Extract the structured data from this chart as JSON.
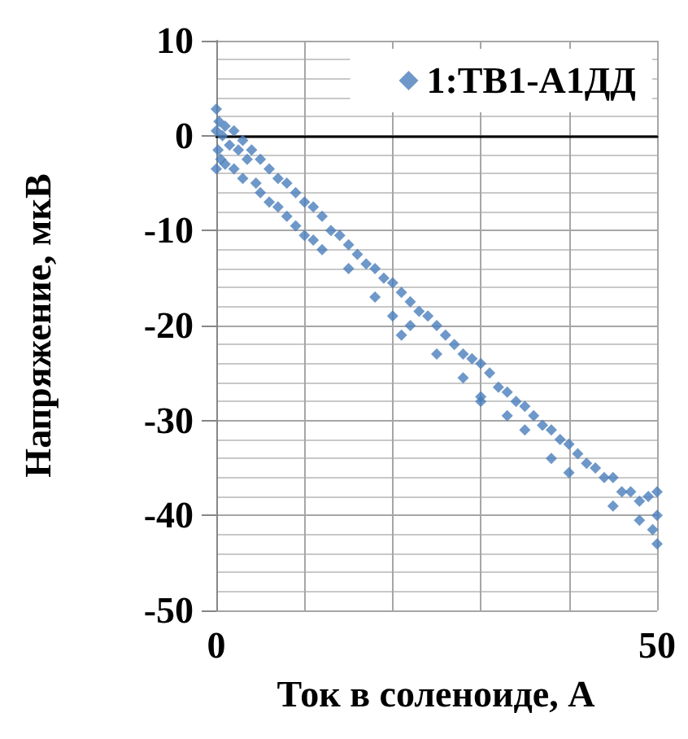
{
  "chart_data": {
    "type": "scatter",
    "xlabel": "Ток в соленоиде, А",
    "ylabel": "Напряжение, мкВ",
    "xlim": [
      0,
      50
    ],
    "xticks": [
      0,
      {
        "value": 10,
        "label": null
      },
      {
        "value": 20,
        "label": null
      },
      {
        "value": 30,
        "label": null
      },
      {
        "value": 40,
        "label": null
      },
      50
    ],
    "ylim": [
      -50,
      10
    ],
    "yticks": [
      -50,
      -40,
      -30,
      -20,
      -10,
      0,
      10
    ],
    "grid": true,
    "legend": "top right",
    "marker": "diamond",
    "series": [
      {
        "name": "1:ТВ1-А1ДД",
        "color": "#4a7ebb",
        "x": [
          0,
          0,
          0,
          0.2,
          0.3,
          0.5,
          0.7,
          1,
          1,
          1.5,
          2,
          2,
          2.5,
          3,
          3,
          3.5,
          4,
          4.5,
          5,
          5,
          6,
          6,
          7,
          7,
          8,
          8,
          9,
          9,
          10,
          10,
          11,
          11,
          12,
          12,
          13,
          14,
          15,
          15,
          16,
          17,
          18,
          18,
          19,
          20,
          20,
          21,
          21,
          22,
          22,
          23,
          24,
          25,
          25,
          26,
          27,
          28,
          28,
          29,
          30,
          30,
          30,
          31,
          32,
          33,
          33,
          34,
          35,
          35,
          36,
          37,
          38,
          38,
          39,
          40,
          40,
          41,
          42,
          43,
          44,
          45,
          45,
          46,
          47,
          48,
          48,
          49,
          49.5,
          50,
          50,
          50
        ],
        "values": [
          2.8,
          -3.5,
          0.5,
          -1.5,
          1.5,
          -2.5,
          0,
          1,
          -3,
          -1,
          0.5,
          -3.5,
          -1.5,
          -0.5,
          -4.5,
          -2.5,
          -1.5,
          -5,
          -2.5,
          -6,
          -3.5,
          -7,
          -4.5,
          -7.5,
          -5,
          -8.5,
          -6,
          -9.5,
          -7,
          -10.5,
          -7.5,
          -11,
          -8.5,
          -12,
          -10,
          -10.5,
          -11.5,
          -14,
          -12.5,
          -13.5,
          -14,
          -17,
          -15,
          -15.5,
          -19,
          -16.5,
          -21,
          -17.5,
          -20,
          -18.5,
          -19,
          -20,
          -23,
          -21,
          -22,
          -23,
          -25.5,
          -23.5,
          -24,
          -27.5,
          -28,
          -25,
          -26.5,
          -27,
          -29.5,
          -28,
          -28.5,
          -31,
          -29.5,
          -30.5,
          -31,
          -34,
          -32,
          -32.5,
          -35.5,
          -33.5,
          -34.5,
          -35,
          -36,
          -36,
          -39,
          -37.5,
          -37.5,
          -38.5,
          -40.5,
          -38,
          -41.5,
          -37.5,
          -40,
          -43
        ]
      }
    ]
  }
}
